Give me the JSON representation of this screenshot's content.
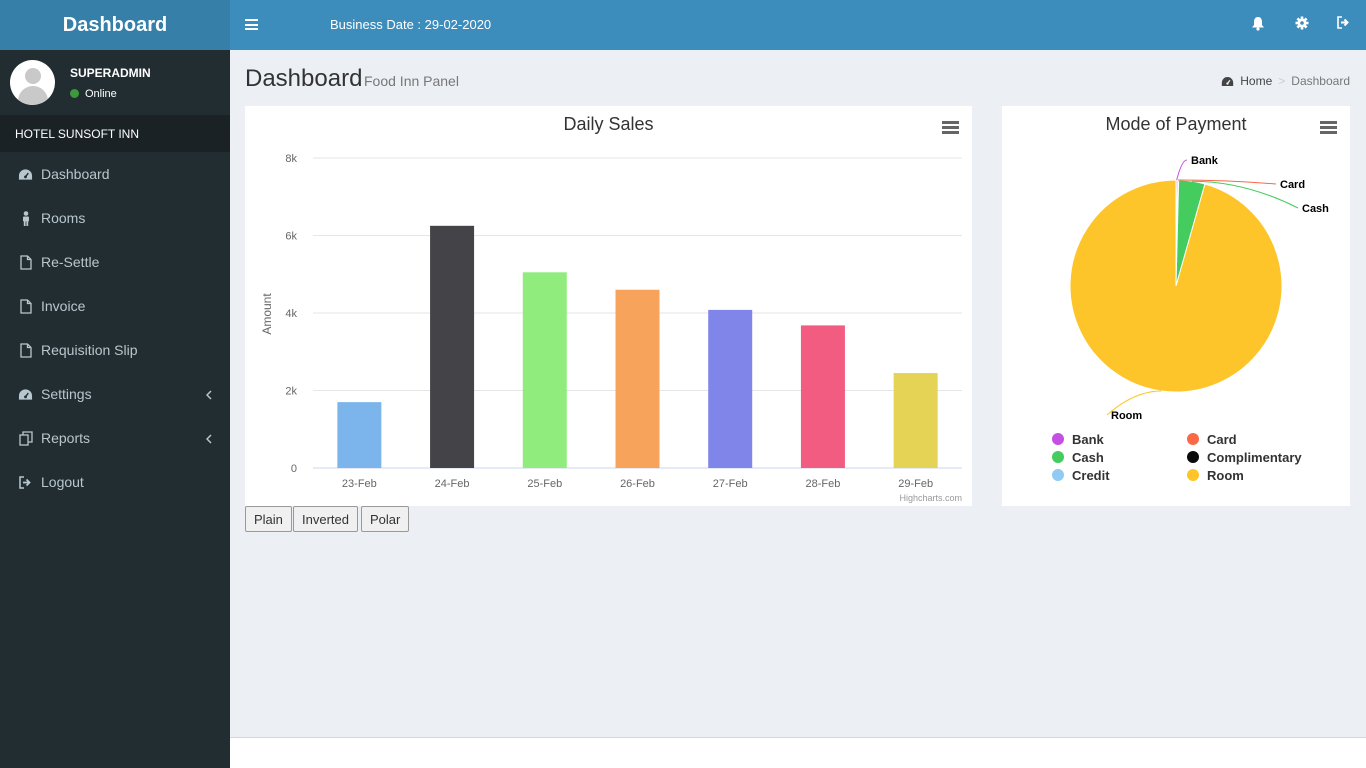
{
  "app": {
    "logo": "Dashboard"
  },
  "header": {
    "business_date": "Business Date : 29-02-2020"
  },
  "user": {
    "name": "SUPERADMIN",
    "status": "Online"
  },
  "sidebar": {
    "hotel": "HOTEL SUNSOFT INN",
    "items": [
      {
        "label": "Dashboard",
        "icon": "dashboard-icon"
      },
      {
        "label": "Rooms",
        "icon": "male-icon"
      },
      {
        "label": "Re-Settle",
        "icon": "file-icon"
      },
      {
        "label": "Invoice",
        "icon": "file-icon"
      },
      {
        "label": "Requisition Slip",
        "icon": "file-icon"
      },
      {
        "label": "Settings",
        "icon": "dashboard-icon",
        "has_submenu": true
      },
      {
        "label": "Reports",
        "icon": "copy-icon",
        "has_submenu": true
      },
      {
        "label": "Logout",
        "icon": "sign-out-icon"
      }
    ]
  },
  "page": {
    "title": "Dashboard",
    "subtitle": "Food Inn Panel"
  },
  "breadcrumb": {
    "home": "Home",
    "current": "Dashboard"
  },
  "buttons": {
    "plain": "Plain",
    "inverted": "Inverted",
    "polar": "Polar"
  },
  "credits": "Highcharts.com",
  "colors": {
    "header": "#3c8dbc",
    "logo": "#367fa9",
    "sidebar": "#222d32"
  },
  "chart_data": [
    {
      "type": "bar",
      "title": "Daily Sales",
      "ylabel": "Amount",
      "categories": [
        "23-Feb",
        "24-Feb",
        "25-Feb",
        "26-Feb",
        "27-Feb",
        "28-Feb",
        "29-Feb"
      ],
      "values": [
        1700,
        6250,
        5050,
        4600,
        4080,
        3680,
        2450
      ],
      "colors": [
        "#7cb5ec",
        "#434348",
        "#90ed7d",
        "#f7a35c",
        "#8085e9",
        "#f15c80",
        "#e4d354"
      ],
      "yticks": [
        "0",
        "2k",
        "4k",
        "6k",
        "8k"
      ],
      "ylim": [
        0,
        8000
      ],
      "grid": true
    },
    {
      "type": "pie",
      "title": "Mode of Payment",
      "slices": [
        {
          "name": "Bank",
          "value": 0.2,
          "color": "#c64fe3"
        },
        {
          "name": "Card",
          "value": 0.2,
          "color": "#f96847"
        },
        {
          "name": "Cash",
          "value": 4.0,
          "color": "#44cc5e"
        },
        {
          "name": "Complimentary",
          "value": 0,
          "color": "#0b0b0b"
        },
        {
          "name": "Credit",
          "value": 0,
          "color": "#91cbf3"
        },
        {
          "name": "Room",
          "value": 95.6,
          "color": "#fec52a"
        }
      ],
      "legend_position": "bottom"
    }
  ]
}
